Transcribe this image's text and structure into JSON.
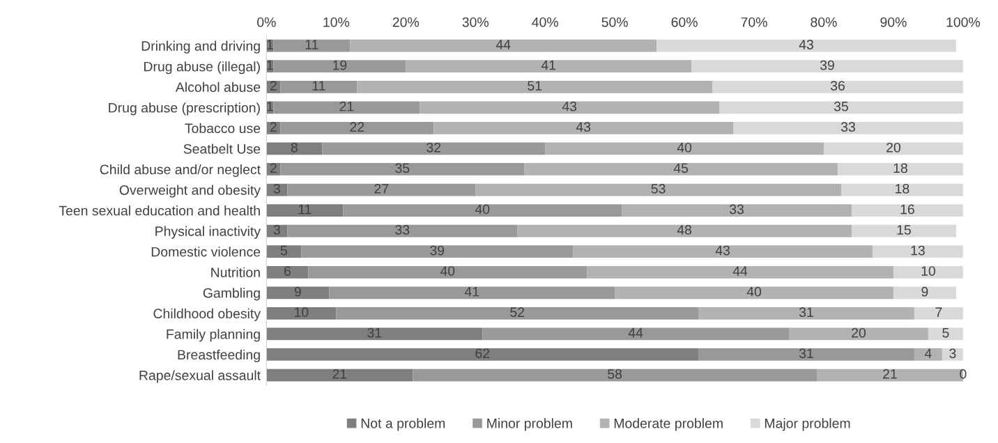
{
  "chart_data": {
    "type": "bar",
    "orientation": "horizontal",
    "stacked": true,
    "categories": [
      "Drinking and driving",
      "Drug abuse (illegal)",
      "Alcohol abuse",
      "Drug abuse (prescription)",
      "Tobacco use",
      "Seatbelt Use",
      "Child abuse and/or neglect",
      "Overweight and obesity",
      "Teen sexual education and health",
      "Physical inactivity",
      "Domestic violence",
      "Nutrition",
      "Gambling",
      "Childhood obesity",
      "Family planning",
      "Breastfeeding",
      "Rape/sexual assault"
    ],
    "series": [
      {
        "name": "Not a problem",
        "color": "#7f7f7f",
        "values": [
          1,
          1,
          2,
          1,
          2,
          8,
          2,
          3,
          11,
          3,
          5,
          6,
          9,
          10,
          31,
          62,
          21
        ],
        "value_labels": [
          "1",
          "1",
          "2",
          "1",
          "2",
          "8",
          "2",
          "3",
          "11",
          "3",
          "5",
          "6",
          "9",
          "10",
          "31",
          "62",
          "21"
        ]
      },
      {
        "name": "Minor problem",
        "color": "#999999",
        "values": [
          11,
          19,
          11,
          21,
          22,
          32,
          35,
          27,
          40,
          33,
          39,
          40,
          41,
          52,
          44,
          31,
          58
        ],
        "value_labels": [
          "11",
          "19",
          "11",
          "21",
          "22",
          "32",
          "35",
          "27",
          "40",
          "33",
          "39",
          "40",
          "41",
          "52",
          "44",
          "31",
          "58"
        ]
      },
      {
        "name": "Moderate problem",
        "color": "#b2b2b2",
        "values": [
          44,
          41,
          51,
          43,
          43,
          40,
          45,
          52.5,
          33,
          48,
          43,
          44,
          40,
          31,
          20,
          4,
          21
        ],
        "value_labels": [
          "44",
          "41",
          "51",
          "43",
          "43",
          "40",
          "45",
          "53",
          "33",
          "48",
          "43",
          "44",
          "40",
          "31",
          "20",
          "4",
          "21"
        ]
      },
      {
        "name": "Major problem",
        "color": "#d9d9d9",
        "values": [
          43,
          39,
          36,
          35,
          33,
          20,
          18,
          17.5,
          16,
          15,
          13,
          10,
          9,
          7,
          5,
          3,
          0
        ],
        "value_labels": [
          "43",
          "39",
          "36",
          "35",
          "33",
          "20",
          "18",
          "18",
          "16",
          "15",
          "13",
          "10",
          "9",
          "7",
          "5",
          "3",
          "0"
        ]
      }
    ],
    "xlim": [
      0,
      100
    ],
    "xticks": [
      {
        "value": 0,
        "label": "0%"
      },
      {
        "value": 10,
        "label": "10%"
      },
      {
        "value": 20,
        "label": "20%"
      },
      {
        "value": 30,
        "label": "30%"
      },
      {
        "value": 40,
        "label": "40%"
      },
      {
        "value": 50,
        "label": "50%"
      },
      {
        "value": 60,
        "label": "60%"
      },
      {
        "value": 70,
        "label": "70%"
      },
      {
        "value": 80,
        "label": "80%"
      },
      {
        "value": 90,
        "label": "90%"
      },
      {
        "value": 100,
        "label": "100%"
      }
    ],
    "legend": "bottom",
    "grid": false
  }
}
